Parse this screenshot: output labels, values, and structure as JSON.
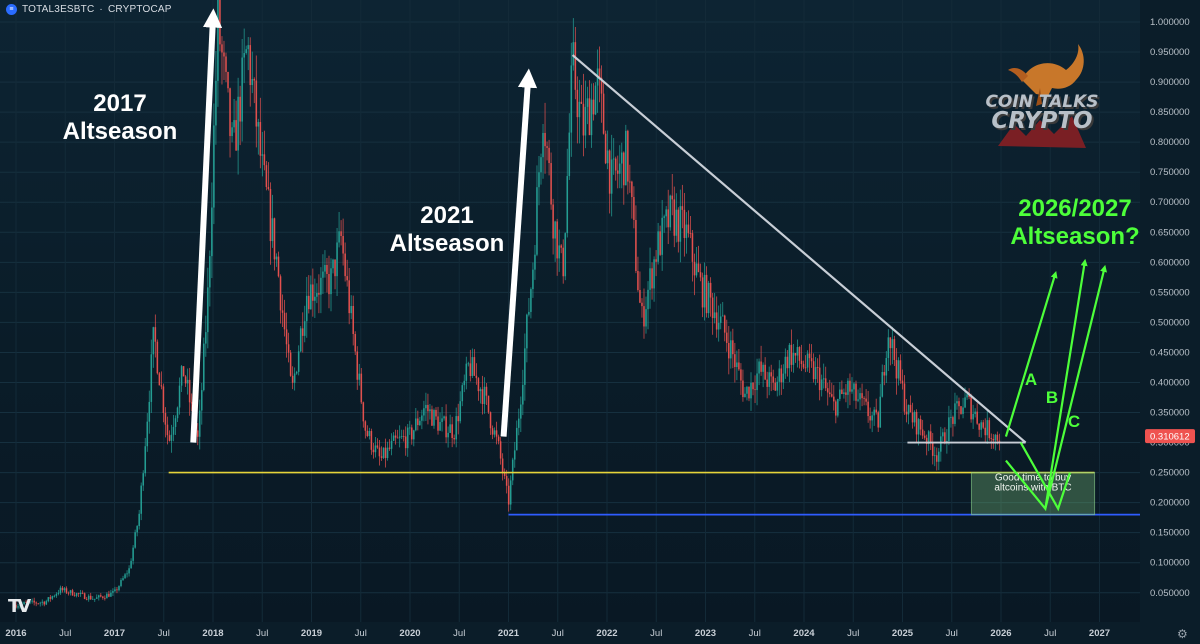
{
  "symbol": {
    "ticker": "TOTAL3ESBTC",
    "separator": "·",
    "exchange": "CRYPTOCAP",
    "icon": "cryptocap-circle-icon"
  },
  "last_price": "0.310612",
  "colors": {
    "background": "#0b1e2b",
    "up_candle": "#26a69a",
    "down_candle": "#ef5350",
    "support_yellow": "#e6d43a",
    "support_blue": "#2f5cff",
    "trendline": "#c8ced6",
    "projection_green": "#4dff3a",
    "annotation_white": "#ffffff",
    "price_label_bg": "#ef5350"
  },
  "chart_data": {
    "type": "candlestick",
    "title": "",
    "xlabel": "",
    "ylabel": "",
    "x_ticks": [
      "2016",
      "Jul",
      "2017",
      "Jul",
      "2018",
      "Jul",
      "2019",
      "Jul",
      "2020",
      "Jul",
      "2021",
      "Jul",
      "2022",
      "Jul",
      "2023",
      "Jul",
      "2024",
      "Jul",
      "2025",
      "Jul",
      "2026",
      "Jul",
      "2027"
    ],
    "y_ticks": [
      "1.000000",
      "0.950000",
      "0.900000",
      "0.850000",
      "0.800000",
      "0.750000",
      "0.700000",
      "0.650000",
      "0.600000",
      "0.550000",
      "0.500000",
      "0.450000",
      "0.400000",
      "0.350000",
      "0.300000",
      "0.250000",
      "0.200000",
      "0.150000",
      "0.100000",
      "0.050000"
    ],
    "ylim": [
      0.0,
      1.03
    ],
    "xlim": [
      2016.0,
      2027.3
    ],
    "price_path": [
      [
        2016.0,
        0.03
      ],
      [
        2016.3,
        0.035
      ],
      [
        2016.45,
        0.055
      ],
      [
        2016.8,
        0.04
      ],
      [
        2017.0,
        0.05
      ],
      [
        2017.15,
        0.09
      ],
      [
        2017.25,
        0.18
      ],
      [
        2017.4,
        0.48
      ],
      [
        2017.55,
        0.3
      ],
      [
        2017.7,
        0.42
      ],
      [
        2017.85,
        0.3
      ],
      [
        2017.95,
        0.55
      ],
      [
        2018.05,
        1.0
      ],
      [
        2018.2,
        0.78
      ],
      [
        2018.35,
        0.96
      ],
      [
        2018.5,
        0.75
      ],
      [
        2018.65,
        0.6
      ],
      [
        2018.8,
        0.38
      ],
      [
        2018.95,
        0.55
      ],
      [
        2019.05,
        0.56
      ],
      [
        2019.2,
        0.57
      ],
      [
        2019.3,
        0.64
      ],
      [
        2019.45,
        0.44
      ],
      [
        2019.55,
        0.32
      ],
      [
        2019.7,
        0.27
      ],
      [
        2019.85,
        0.3
      ],
      [
        2020.0,
        0.31
      ],
      [
        2020.15,
        0.36
      ],
      [
        2020.3,
        0.33
      ],
      [
        2020.45,
        0.32
      ],
      [
        2020.6,
        0.43
      ],
      [
        2020.75,
        0.38
      ],
      [
        2020.9,
        0.29
      ],
      [
        2021.0,
        0.2
      ],
      [
        2021.1,
        0.34
      ],
      [
        2021.25,
        0.6
      ],
      [
        2021.35,
        0.86
      ],
      [
        2021.45,
        0.68
      ],
      [
        2021.55,
        0.58
      ],
      [
        2021.65,
        0.93
      ],
      [
        2021.75,
        0.82
      ],
      [
        2021.9,
        0.9
      ],
      [
        2022.05,
        0.73
      ],
      [
        2022.2,
        0.78
      ],
      [
        2022.35,
        0.5
      ],
      [
        2022.5,
        0.62
      ],
      [
        2022.65,
        0.68
      ],
      [
        2022.8,
        0.65
      ],
      [
        2022.95,
        0.56
      ],
      [
        2023.1,
        0.52
      ],
      [
        2023.25,
        0.46
      ],
      [
        2023.4,
        0.38
      ],
      [
        2023.55,
        0.42
      ],
      [
        2023.7,
        0.39
      ],
      [
        2023.85,
        0.45
      ],
      [
        2024.0,
        0.43
      ],
      [
        2024.15,
        0.41
      ],
      [
        2024.3,
        0.36
      ],
      [
        2024.45,
        0.39
      ],
      [
        2024.6,
        0.36
      ],
      [
        2024.75,
        0.33
      ],
      [
        2024.85,
        0.49
      ],
      [
        2024.95,
        0.42
      ],
      [
        2025.05,
        0.35
      ],
      [
        2025.2,
        0.32
      ],
      [
        2025.35,
        0.28
      ],
      [
        2025.5,
        0.34
      ],
      [
        2025.65,
        0.37
      ],
      [
        2025.8,
        0.33
      ],
      [
        2025.95,
        0.31
      ]
    ],
    "annotations": {
      "label_2017": [
        "2017",
        "Altseason"
      ],
      "label_2021": [
        "2021",
        "Altseason"
      ],
      "label_future": [
        "2026/2027",
        "Altseason?"
      ],
      "scenario_a": "A",
      "scenario_b": "B",
      "scenario_c": "C",
      "buy_zone": [
        "Good time to buy",
        "altcoins with BTC"
      ]
    },
    "levels": {
      "yellow_support": 0.25,
      "blue_support": 0.18,
      "white_base": 0.3
    },
    "trendline": {
      "from": [
        2021.65,
        0.945
      ],
      "to": [
        2026.25,
        0.3
      ]
    },
    "arrows": {
      "arrow_2017": {
        "from": [
          2017.8,
          0.3
        ],
        "to": [
          2018.0,
          1.03
        ]
      },
      "arrow_2021": {
        "from": [
          2020.95,
          0.31
        ],
        "to": [
          2021.2,
          0.92
        ]
      }
    },
    "projections": {
      "A": {
        "path": [
          [
            2026.05,
            0.31
          ],
          [
            2026.55,
            0.58
          ]
        ]
      },
      "B": {
        "path": [
          [
            2026.05,
            0.27
          ],
          [
            2026.45,
            0.19
          ],
          [
            2026.85,
            0.6
          ]
        ]
      },
      "C": {
        "path": [
          [
            2026.45,
            0.19
          ],
          [
            2027.05,
            0.59
          ]
        ]
      },
      "V": {
        "path": [
          [
            2026.2,
            0.3
          ],
          [
            2026.58,
            0.19
          ],
          [
            2026.7,
            0.25
          ]
        ]
      }
    },
    "buy_zone_box": {
      "x": [
        2025.7,
        2026.95
      ],
      "y": [
        0.18,
        0.25
      ]
    }
  },
  "branding": {
    "logo_line1": "COIN TALKS",
    "logo_line2": "CRYPTO",
    "logo_icon": "bull-icon",
    "platform_icon": "tradingview-icon",
    "settings_icon": "gear-icon"
  }
}
